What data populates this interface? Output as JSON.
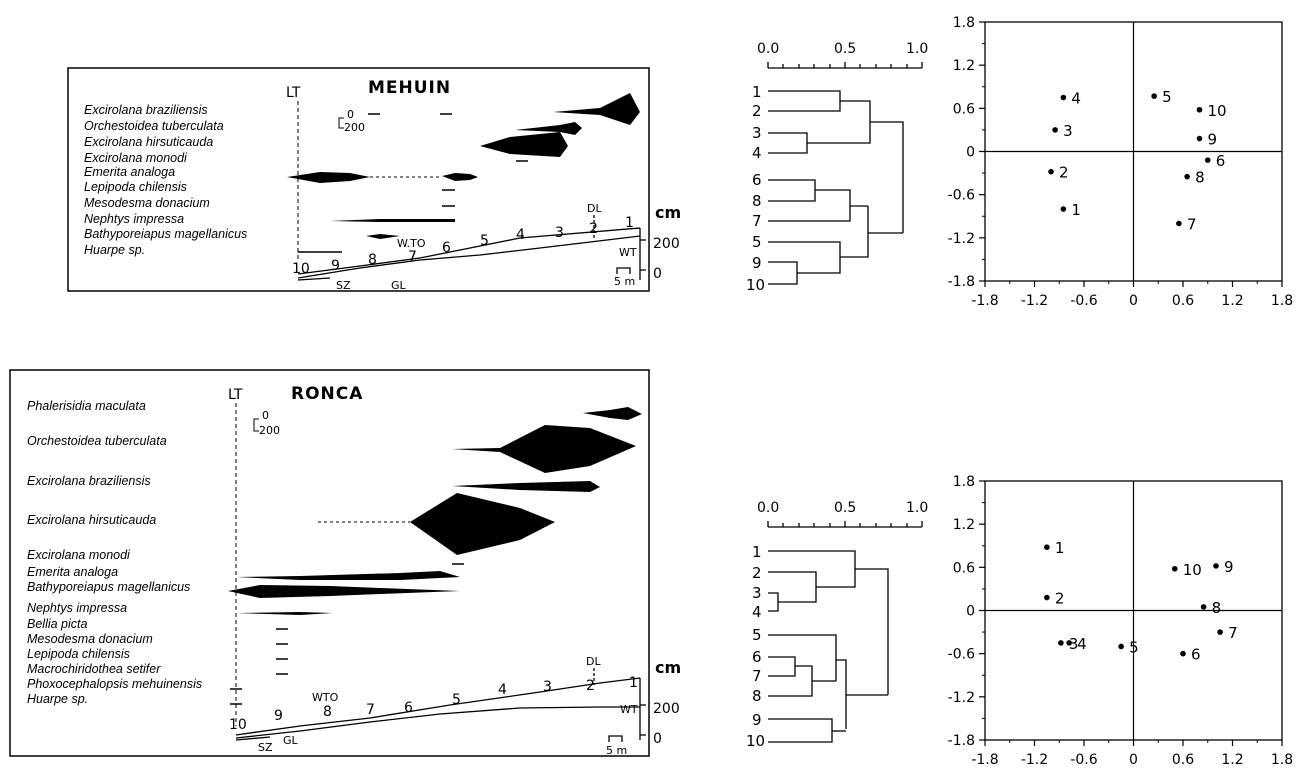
{
  "mehuin": {
    "title": "MEHUIN",
    "species": [
      "Excirolana braziliensis",
      "Orchestoidea tuberculata",
      "Excirolana hirsuticauda",
      "Excirolana monodi",
      "Emerita analoga",
      "Lepipoda chilensis",
      "Mesodesma donacium",
      "Nephtys impressa",
      "Bathyporeiapus magellanicus",
      "Huarpe sp."
    ],
    "levels": [
      "1",
      "2",
      "3",
      "4",
      "5",
      "6",
      "7",
      "8",
      "9",
      "10"
    ],
    "labels": {
      "lt": "LT",
      "dl": "DL",
      "wto": "W.TO",
      "wt": "WT",
      "sz": "SZ",
      "gl": "GL",
      "cm": "cm",
      "scale_top": "0",
      "scale_bot": "200",
      "sec_200": "200",
      "sec_0": "0",
      "m5": "5 m"
    }
  },
  "ronca": {
    "title": "RONCA",
    "species": [
      "Phalerisidia maculata",
      "Orchestoidea tuberculata",
      "Excirolana braziliensis",
      "Excirolana hirsuticauda",
      "Excirolana monodi",
      "Emerita analoga",
      "Bathyporeiapus magellanicus",
      "Nephtys impressa",
      "Bellia picta",
      "Mesodesma donacium",
      "Lepipoda chilensis",
      "Macrochiridothea setifer",
      "Phoxocephalopsis mehuinensis",
      "Huarpe sp."
    ],
    "levels": [
      "1",
      "2",
      "3",
      "4",
      "5",
      "6",
      "7",
      "8",
      "9",
      "10"
    ],
    "labels": {
      "lt": "LT",
      "dl": "DL",
      "wto": "WTO",
      "wt": "WT",
      "sz": "SZ",
      "gl": "GL",
      "cm": "cm",
      "scale_top": "0",
      "scale_bot": "200",
      "sec_200": "200",
      "sec_0": "0",
      "m5": "5 m"
    }
  },
  "dendro_top": {
    "axis": [
      "0.0",
      "0.5",
      "1.0"
    ],
    "leaves": [
      "1",
      "2",
      "3",
      "4",
      "6",
      "8",
      "7",
      "5",
      "9",
      "10"
    ]
  },
  "dendro_bottom": {
    "axis": [
      "0.0",
      "0.5",
      "1.0"
    ],
    "leaves": [
      "1",
      "2",
      "3",
      "4",
      "5",
      "6",
      "7",
      "8",
      "9",
      "10"
    ]
  },
  "chart_data": [
    {
      "type": "scatter",
      "x_ticks": [
        "-1.8",
        "-1.2",
        "-0.6",
        "0",
        "0.6",
        "1.2",
        "1.8"
      ],
      "y_ticks": [
        "1.8",
        "1.2",
        "0.6",
        "0",
        "-0.6",
        "-1.2",
        "-1.8"
      ],
      "xlim": [
        -1.8,
        1.8
      ],
      "ylim": [
        -1.8,
        1.8
      ],
      "points": [
        {
          "label": "1",
          "x": -0.85,
          "y": -0.8
        },
        {
          "label": "2",
          "x": -1.0,
          "y": -0.28
        },
        {
          "label": "3",
          "x": -0.95,
          "y": 0.3
        },
        {
          "label": "4",
          "x": -0.85,
          "y": 0.75
        },
        {
          "label": "5",
          "x": 0.25,
          "y": 0.77
        },
        {
          "label": "6",
          "x": 0.9,
          "y": -0.12
        },
        {
          "label": "7",
          "x": 0.55,
          "y": -1.0
        },
        {
          "label": "8",
          "x": 0.65,
          "y": -0.35
        },
        {
          "label": "9",
          "x": 0.8,
          "y": 0.18
        },
        {
          "label": "10",
          "x": 0.8,
          "y": 0.58
        }
      ]
    },
    {
      "type": "scatter",
      "x_ticks": [
        "-1.8",
        "-1.2",
        "-0.6",
        "0",
        "0.6",
        "1.2",
        "1.8"
      ],
      "y_ticks": [
        "1.8",
        "1.2",
        "0.6",
        "0",
        "-0.6",
        "-1.2",
        "-1.8"
      ],
      "xlim": [
        -1.8,
        1.8
      ],
      "ylim": [
        -1.8,
        1.8
      ],
      "points": [
        {
          "label": "1",
          "x": -1.05,
          "y": 0.88
        },
        {
          "label": "2",
          "x": -1.05,
          "y": 0.18
        },
        {
          "label": "3",
          "x": -0.88,
          "y": -0.45
        },
        {
          "label": "4",
          "x": -0.78,
          "y": -0.45
        },
        {
          "label": "5",
          "x": -0.15,
          "y": -0.5
        },
        {
          "label": "6",
          "x": 0.6,
          "y": -0.6
        },
        {
          "label": "7",
          "x": 1.05,
          "y": -0.3
        },
        {
          "label": "8",
          "x": 0.85,
          "y": 0.05
        },
        {
          "label": "9",
          "x": 1.0,
          "y": 0.62
        },
        {
          "label": "10",
          "x": 0.5,
          "y": 0.58
        }
      ]
    }
  ]
}
